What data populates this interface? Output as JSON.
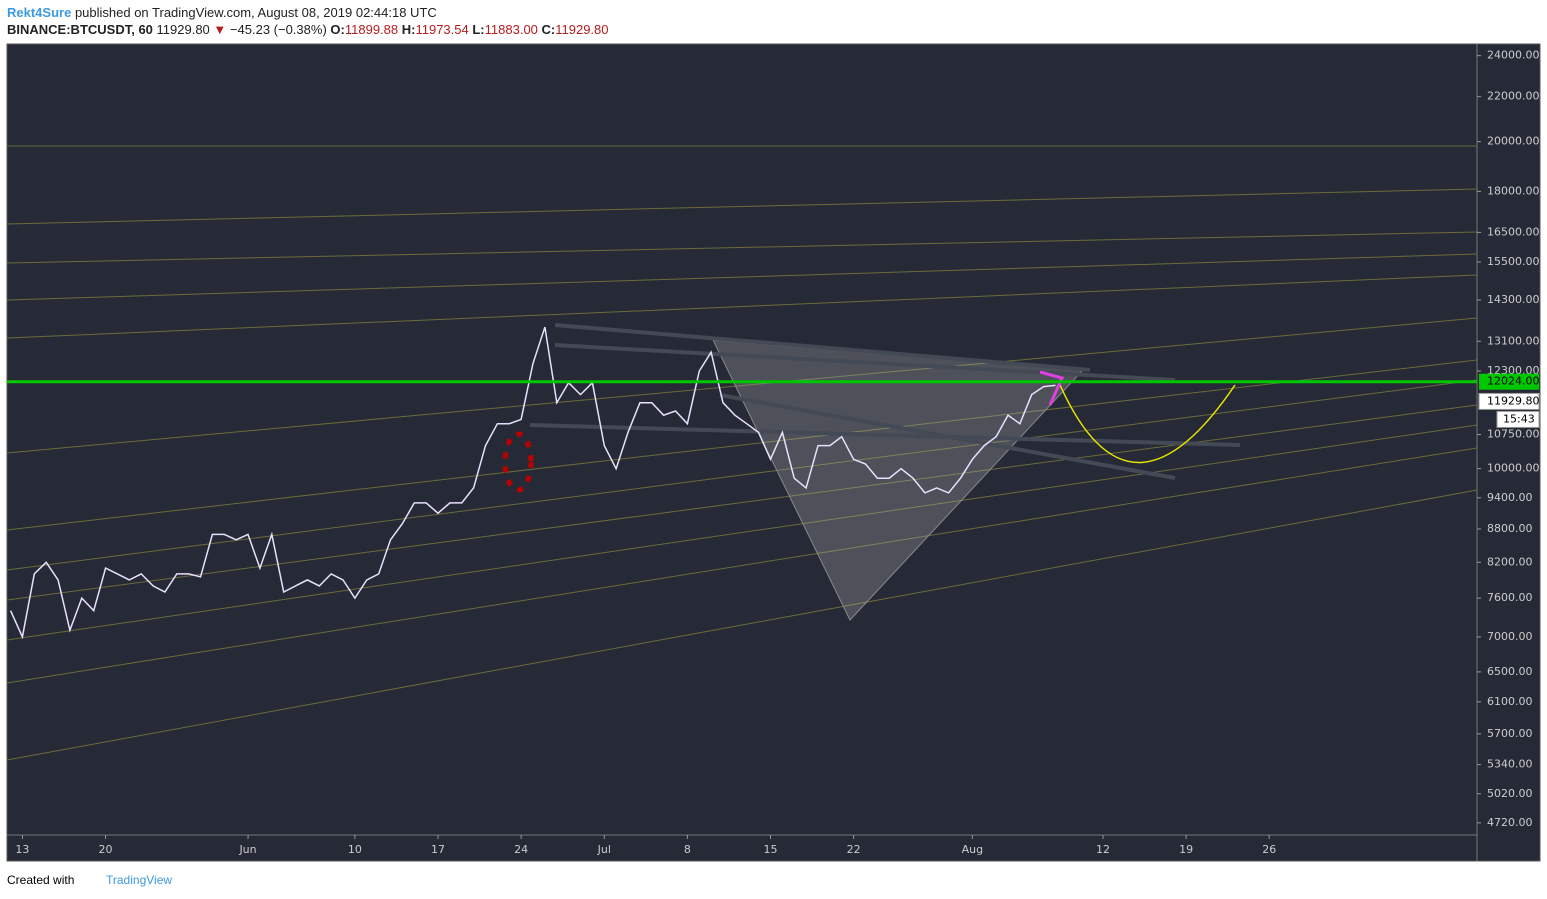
{
  "header": {
    "author": "Rekt4Sure",
    "published": "published on TradingView.com, August 08, 2019 02:44:18 UTC",
    "symbol": "BINANCE:BTCUSDT, 60",
    "price": "11929.80",
    "arrow": "▼",
    "change": "−45.23 (−0.38%)",
    "o_label": "O:",
    "o": "11899.88",
    "h_label": "H:",
    "h": "11973.54",
    "l_label": "L:",
    "l": "11883.00",
    "c_label": "C:",
    "c": "11929.80"
  },
  "chart_data": {
    "type": "line",
    "log_scale": true,
    "color": "#e8e0ff",
    "xlim": [
      -1.3,
      122.5
    ],
    "ylim": [
      4600,
      24600
    ],
    "xticks": [
      {
        "value": 0,
        "label": "13"
      },
      {
        "value": 7,
        "label": "20"
      },
      {
        "value": 19,
        "label": "Jun"
      },
      {
        "value": 28,
        "label": "10"
      },
      {
        "value": 35,
        "label": "17"
      },
      {
        "value": 42,
        "label": "24"
      },
      {
        "value": 49,
        "label": "Jul"
      },
      {
        "value": 56,
        "label": "8"
      },
      {
        "value": 63,
        "label": "15"
      },
      {
        "value": 70,
        "label": "22"
      },
      {
        "value": 80,
        "label": "Aug"
      },
      {
        "value": 91,
        "label": "12"
      },
      {
        "value": 98,
        "label": "19"
      },
      {
        "value": 105,
        "label": "26"
      }
    ],
    "yticks": [
      {
        "value": 24000,
        "label": "24000.00"
      },
      {
        "value": 22000,
        "label": "22000.00"
      },
      {
        "value": 20000,
        "label": "20000.00"
      },
      {
        "value": 18000,
        "label": "18000.00"
      },
      {
        "value": 16500,
        "label": "16500.00"
      },
      {
        "value": 15500,
        "label": "15500.00"
      },
      {
        "value": 14300,
        "label": "14300.00"
      },
      {
        "value": 13100,
        "label": "13100.00"
      },
      {
        "value": 12300,
        "label": "12300.00"
      },
      {
        "value": 10750,
        "label": "10750.00"
      },
      {
        "value": 10000,
        "label": "10000.00"
      },
      {
        "value": 9400,
        "label": "9400.00"
      },
      {
        "value": 8800,
        "label": "8800.00"
      },
      {
        "value": 8200,
        "label": "8200.00"
      },
      {
        "value": 7600,
        "label": "7600.00"
      },
      {
        "value": 7000,
        "label": "7000.00"
      },
      {
        "value": 6500,
        "label": "6500.00"
      },
      {
        "value": 6100,
        "label": "6100.00"
      },
      {
        "value": 5700,
        "label": "5700.00"
      },
      {
        "value": 5340,
        "label": "5340.00"
      },
      {
        "value": 5020,
        "label": "5020.00"
      },
      {
        "value": 4720,
        "label": "4720.00"
      }
    ],
    "x": [
      -1,
      0,
      1,
      2,
      3,
      4,
      5,
      6,
      7,
      8,
      9,
      10,
      11,
      12,
      13,
      14,
      15,
      16,
      17,
      18,
      19,
      20,
      21,
      22,
      23,
      24,
      25,
      26,
      27,
      28,
      29,
      30,
      31,
      32,
      33,
      34,
      35,
      36,
      37,
      38,
      39,
      40,
      41,
      42,
      43,
      44,
      45,
      46,
      47,
      48,
      49,
      50,
      51,
      52,
      53,
      54,
      55,
      56,
      57,
      58,
      59,
      60,
      61,
      62,
      63,
      64,
      65,
      66,
      67,
      68,
      69,
      70,
      71,
      72,
      73,
      74,
      75,
      76,
      77,
      78,
      79,
      80,
      81,
      82,
      83,
      84,
      85,
      86,
      87
    ],
    "values": [
      7400,
      7000,
      8000,
      8200,
      7900,
      7100,
      7600,
      7400,
      8100,
      8000,
      7900,
      8000,
      7800,
      7700,
      8000,
      8000,
      7950,
      8700,
      8700,
      8600,
      8700,
      8100,
      8700,
      7700,
      7800,
      7900,
      7800,
      8000,
      7900,
      7600,
      7900,
      8000,
      8600,
      8900,
      9300,
      9300,
      9100,
      9300,
      9300,
      9600,
      10500,
      11000,
      11000,
      11100,
      12500,
      13500,
      11500,
      12000,
      11700,
      12000,
      10500,
      10000,
      10800,
      11500,
      11500,
      11200,
      11300,
      11000,
      12300,
      12800,
      11500,
      11200,
      11000,
      10800,
      10200,
      10800,
      9800,
      9600,
      10500,
      10500,
      10700,
      10200,
      10100,
      9800,
      9800,
      10000,
      9800,
      9500,
      9600,
      9500,
      9800,
      10200,
      10500,
      10700,
      11200,
      11000,
      11700,
      11900,
      11930
    ],
    "price_level": {
      "value": 12024,
      "label": "12024.00",
      "color": "#00c800"
    },
    "last_price": {
      "value": 11929.8,
      "label": "11929.80"
    },
    "countdown": "15:43"
  },
  "footer": {
    "created": "Created with",
    "brand": "TradingView"
  }
}
